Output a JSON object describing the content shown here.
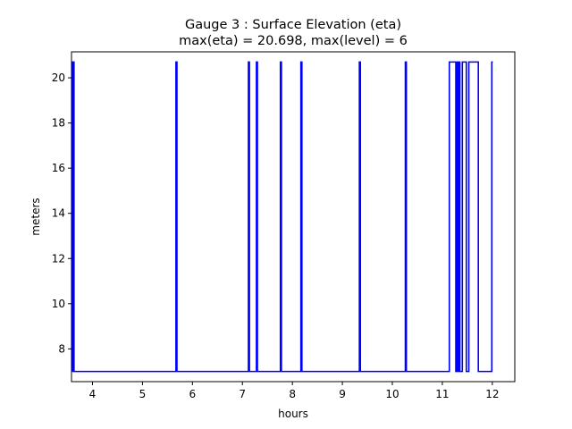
{
  "chart_data": {
    "type": "line",
    "title_line1": "Gauge 3 : Surface Elevation (eta)",
    "title_line2": "max(eta) =  20.698,    max(level) = 6",
    "xlabel": "hours",
    "ylabel": "meters",
    "xlim": [
      3.58,
      12.45
    ],
    "ylim": [
      6.55,
      21.15
    ],
    "xticks": [
      4,
      5,
      6,
      7,
      8,
      9,
      10,
      11,
      12
    ],
    "yticks": [
      8,
      10,
      12,
      14,
      16,
      18,
      20
    ],
    "grid": false,
    "line_color": "#0000ff",
    "series": [
      {
        "x": [
          3.6,
          3.6,
          3.61,
          3.61,
          3.62,
          3.62,
          3.63,
          3.63,
          3.64,
          3.64,
          5.67,
          5.67,
          5.69,
          5.69,
          7.12,
          7.12,
          7.14,
          7.14,
          7.28,
          7.28,
          7.3,
          7.3,
          7.76,
          7.76,
          7.78,
          7.78,
          8.17,
          8.17,
          8.19,
          8.19,
          8.2,
          8.2,
          9.34,
          9.34,
          9.36,
          9.36,
          10.26,
          10.26,
          10.28,
          10.28,
          11.14,
          11.14,
          11.17,
          11.17,
          11.27,
          11.27,
          11.29,
          11.29,
          11.31,
          11.31,
          11.33,
          11.33,
          11.35,
          11.35,
          11.4,
          11.4,
          11.48,
          11.48,
          11.53,
          11.53,
          11.57,
          11.57,
          11.72,
          11.72,
          11.99,
          11.99,
          12.01,
          12.01
        ],
        "y": [
          7.0,
          20.7,
          20.7,
          7.0,
          7.0,
          20.7,
          20.7,
          7.0,
          7.0,
          7.0,
          7.0,
          20.7,
          20.7,
          7.0,
          7.0,
          20.7,
          20.7,
          7.0,
          7.0,
          20.7,
          20.7,
          7.0,
          7.0,
          20.7,
          20.7,
          7.0,
          7.0,
          20.7,
          20.7,
          7.0,
          7.0,
          7.0,
          7.0,
          20.7,
          20.7,
          7.0,
          7.0,
          20.7,
          20.7,
          7.0,
          7.0,
          20.7,
          20.7,
          20.7,
          20.7,
          7.0,
          7.0,
          20.7,
          20.7,
          7.0,
          7.0,
          20.7,
          20.7,
          7.0,
          7.0,
          20.7,
          20.7,
          7.0,
          7.0,
          20.7,
          20.7,
          20.7,
          20.7,
          7.0,
          7.0,
          20.7,
          20.7,
          20.7
        ]
      }
    ]
  }
}
